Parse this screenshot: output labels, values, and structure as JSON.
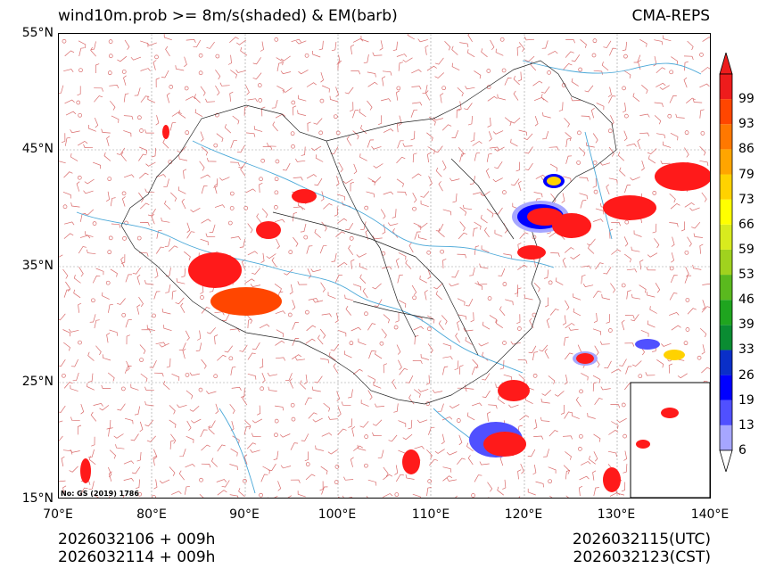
{
  "title_left": "wind10m.prob >= 8m/s(shaded) & EM(barb)",
  "title_right": "CMA-REPS",
  "map_note": "No: GS (2019) 1786",
  "lat_labels": [
    "55°N",
    "45°N",
    "35°N",
    "25°N",
    "15°N"
  ],
  "lon_labels": [
    "70°E",
    "80°E",
    "90°E",
    "100°E",
    "110°E",
    "120°E",
    "130°E",
    "140°E"
  ],
  "init_time": "2026032106  +  009h",
  "init_time_cst": "2026032114  +  009h",
  "valid_time_utc": "2026032115(UTC)",
  "valid_time_cst": "2026032123(CST)",
  "colorbar": {
    "levels": [
      "6",
      "13",
      "19",
      "26",
      "33",
      "39",
      "46",
      "53",
      "59",
      "66",
      "73",
      "79",
      "86",
      "93",
      "99"
    ],
    "colors": [
      "#a6a6ff",
      "#5050ff",
      "#0000ff",
      "#0a2fc8",
      "#0a8c32",
      "#1fa51f",
      "#5ab91e",
      "#a0d21e",
      "#d8eb1e",
      "#ffff00",
      "#ffd200",
      "#ffa500",
      "#ff7800",
      "#ff4600",
      "#ee1c1c"
    ]
  },
  "colors": {
    "barb": "#d96a6a",
    "river": "#4aa8d8",
    "border": "#222222",
    "prob_high": "#ff1a1a"
  }
}
